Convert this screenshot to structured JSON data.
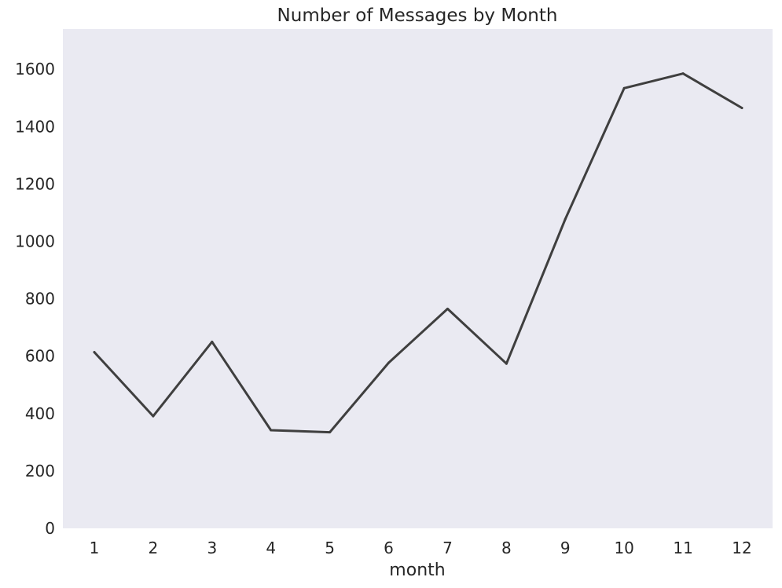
{
  "chart_data": {
    "type": "line",
    "title": "Number of Messages by Month",
    "xlabel": "month",
    "ylabel": "",
    "categories": [
      "1",
      "2",
      "3",
      "4",
      "5",
      "6",
      "7",
      "8",
      "9",
      "10",
      "11",
      "12"
    ],
    "series": [
      {
        "values": [
          614,
          391,
          650,
          342,
          335,
          577,
          765,
          574,
          1078,
          1534,
          1585,
          1465
        ]
      }
    ],
    "ylim": [
      0,
      1740
    ],
    "yticks": [
      0,
      200,
      400,
      600,
      800,
      1000,
      1200,
      1400,
      1600
    ],
    "grid": false,
    "legend": "none"
  },
  "colors": {
    "plot_background": "#eaeaf2",
    "line": "#3f3f3f",
    "text": "#262626"
  }
}
